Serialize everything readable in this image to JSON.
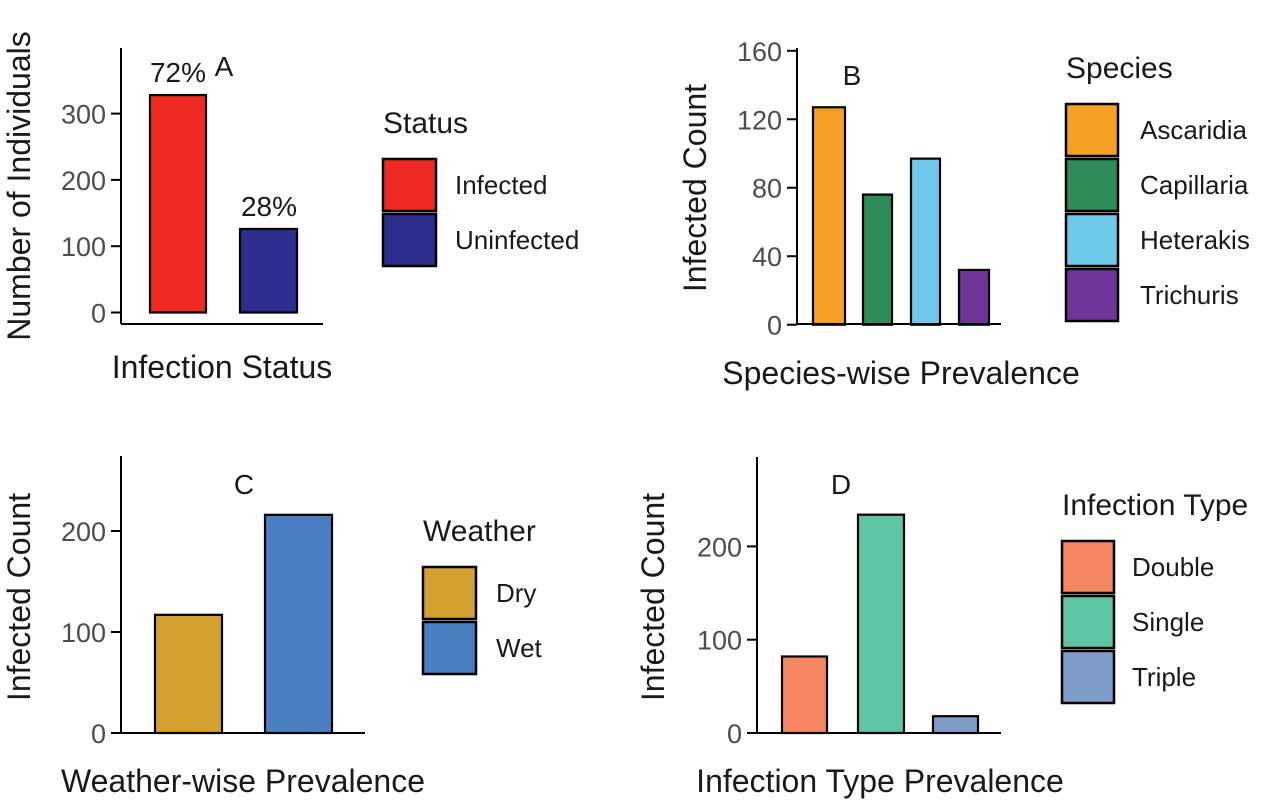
{
  "chart_data": [
    {
      "panel": "A",
      "type": "bar",
      "title": "",
      "panel_tag": "A",
      "xlabel": "Infection Status",
      "ylabel": "Number of Individuals",
      "categories": [
        "Infected",
        "Uninfected"
      ],
      "values": [
        328,
        126
      ],
      "data_labels": [
        "72%",
        "28%"
      ],
      "colors": [
        "#EE2A23",
        "#2D2D8E"
      ],
      "yticks": [
        0,
        100,
        200,
        300
      ],
      "ylim": [
        -17,
        400
      ],
      "x_tick_labels_shown": false,
      "grid": false,
      "legend": {
        "title": "Status",
        "placement": "right",
        "entries": [
          "Infected",
          "Uninfected"
        ]
      }
    },
    {
      "panel": "B",
      "type": "bar",
      "title": "",
      "panel_tag": "B",
      "xlabel": "Species-wise Prevalence",
      "ylabel": "Infected Count",
      "categories": [
        "Ascaridia",
        "Capillaria",
        "Heterakis",
        "Trichuris"
      ],
      "values": [
        127,
        76,
        97,
        32
      ],
      "colors": [
        "#F5A023",
        "#2E8B5A",
        "#6FC9E8",
        "#6E3497"
      ],
      "yticks": [
        0,
        40,
        80,
        120,
        160
      ],
      "ylim": [
        0,
        160
      ],
      "x_tick_labels_shown": false,
      "grid": false,
      "legend": {
        "title": "Species",
        "placement": "right",
        "entries": [
          "Ascaridia",
          "Capillaria",
          "Heterakis",
          "Trichuris"
        ]
      }
    },
    {
      "panel": "C",
      "type": "bar",
      "title": "",
      "panel_tag": "C",
      "xlabel": "Weather-wise Prevalence",
      "ylabel": "Infected Count",
      "categories": [
        "Dry",
        "Wet"
      ],
      "values": [
        117,
        216
      ],
      "colors": [
        "#D4A030",
        "#4A80C2"
      ],
      "yticks": [
        0,
        100,
        200
      ],
      "ylim": [
        0,
        275
      ],
      "x_tick_labels_shown": false,
      "grid": false,
      "legend": {
        "title": "Weather",
        "placement": "right",
        "entries": [
          "Dry",
          "Wet"
        ]
      }
    },
    {
      "panel": "D",
      "type": "bar",
      "title": "",
      "panel_tag": "D",
      "xlabel": "Infection Type Prevalence",
      "ylabel": "Infected Count",
      "categories": [
        "Double",
        "Single",
        "Triple"
      ],
      "values": [
        82,
        234,
        18
      ],
      "colors": [
        "#F48762",
        "#5DC4A4",
        "#7F9BC8"
      ],
      "yticks": [
        0,
        100,
        200
      ],
      "ylim": [
        0,
        295
      ],
      "x_tick_labels_shown": false,
      "grid": false,
      "legend": {
        "title": "Infection Type",
        "placement": "right",
        "entries": [
          "Double",
          "Single",
          "Triple"
        ]
      }
    }
  ]
}
